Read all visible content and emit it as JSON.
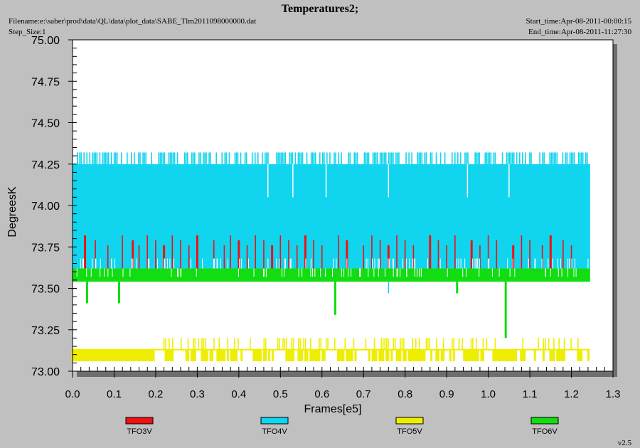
{
  "header": {
    "title": "Temperatures2;",
    "filename": "Filename:e:\\saber\\prod\\data\\QL\\data\\plot_data\\SABE_Tlm2011098000000.dat",
    "step_size": "Step_Size:1",
    "start_time": "Start_time:Apr-08-2011-00:00:15",
    "end_time": "End_time:Apr-08-2011-11:27:30"
  },
  "version": "v2.5",
  "chart_data": {
    "type": "line",
    "title": "Temperatures2;",
    "xlabel": "Frames[e5]",
    "ylabel": "DegreesK",
    "xlim": [
      0.0,
      1.3
    ],
    "ylim": [
      73.0,
      75.0
    ],
    "xticks": [
      "0.0",
      "0.1",
      "0.2",
      "0.3",
      "0.4",
      "0.5",
      "0.6",
      "0.7",
      "0.8",
      "0.9",
      "1.0",
      "1.1",
      "1.2",
      "1.3"
    ],
    "yticks": [
      "73.00",
      "73.25",
      "73.50",
      "73.75",
      "74.00",
      "74.25",
      "74.50",
      "74.75",
      "75.00"
    ],
    "x_data_extent": [
      0.0,
      1.245
    ],
    "legend_position": "bottom",
    "series": [
      {
        "name": "TFO3V",
        "color": "#ee1111",
        "base_band": [
          73.62,
          73.68
        ],
        "spike_high": 73.82,
        "spike_low": 73.62,
        "spikes_at": [
          0.03,
          0.055,
          0.085,
          0.12,
          0.145,
          0.16,
          0.18,
          0.2,
          0.22,
          0.24,
          0.26,
          0.28,
          0.3,
          0.34,
          0.365,
          0.38,
          0.4,
          0.42,
          0.44,
          0.46,
          0.48,
          0.5,
          0.52,
          0.54,
          0.56,
          0.58,
          0.6,
          0.64,
          0.66,
          0.7,
          0.72,
          0.74,
          0.76,
          0.78,
          0.8,
          0.82,
          0.86,
          0.88,
          0.9,
          0.92,
          0.96,
          0.98,
          1.0,
          1.02,
          1.06,
          1.08,
          1.1,
          1.13,
          1.15,
          1.18,
          1.2
        ]
      },
      {
        "name": "TFO4V",
        "color": "#11d4ee",
        "base_band": [
          73.62,
          74.25
        ],
        "spike_high": 74.32,
        "dips_at": [
          0.47,
          0.53,
          0.61,
          0.76,
          0.95,
          1.05
        ],
        "dip_low": 74.05,
        "outlier_low": {
          "x": 0.76,
          "y": 73.47
        },
        "outlier_high": {
          "x": 0.012,
          "y": 74.32
        }
      },
      {
        "name": "TFO5V",
        "color": "#eeee00",
        "base_band": [
          73.06,
          73.13
        ],
        "spike_high": 73.2,
        "gaps_at": [
          0.21,
          0.26,
          0.42,
          0.5,
          0.62,
          0.7,
          0.93,
          1.0,
          1.1,
          1.2
        ]
      },
      {
        "name": "TFO6V",
        "color": "#11dd11",
        "base_band": [
          73.54,
          73.62
        ],
        "spike_low_points": [
          {
            "x": 0.035,
            "y": 73.41
          },
          {
            "x": 0.112,
            "y": 73.41
          },
          {
            "x": 0.632,
            "y": 73.34
          },
          {
            "x": 0.925,
            "y": 73.47
          },
          {
            "x": 1.042,
            "y": 73.2
          }
        ]
      }
    ]
  }
}
